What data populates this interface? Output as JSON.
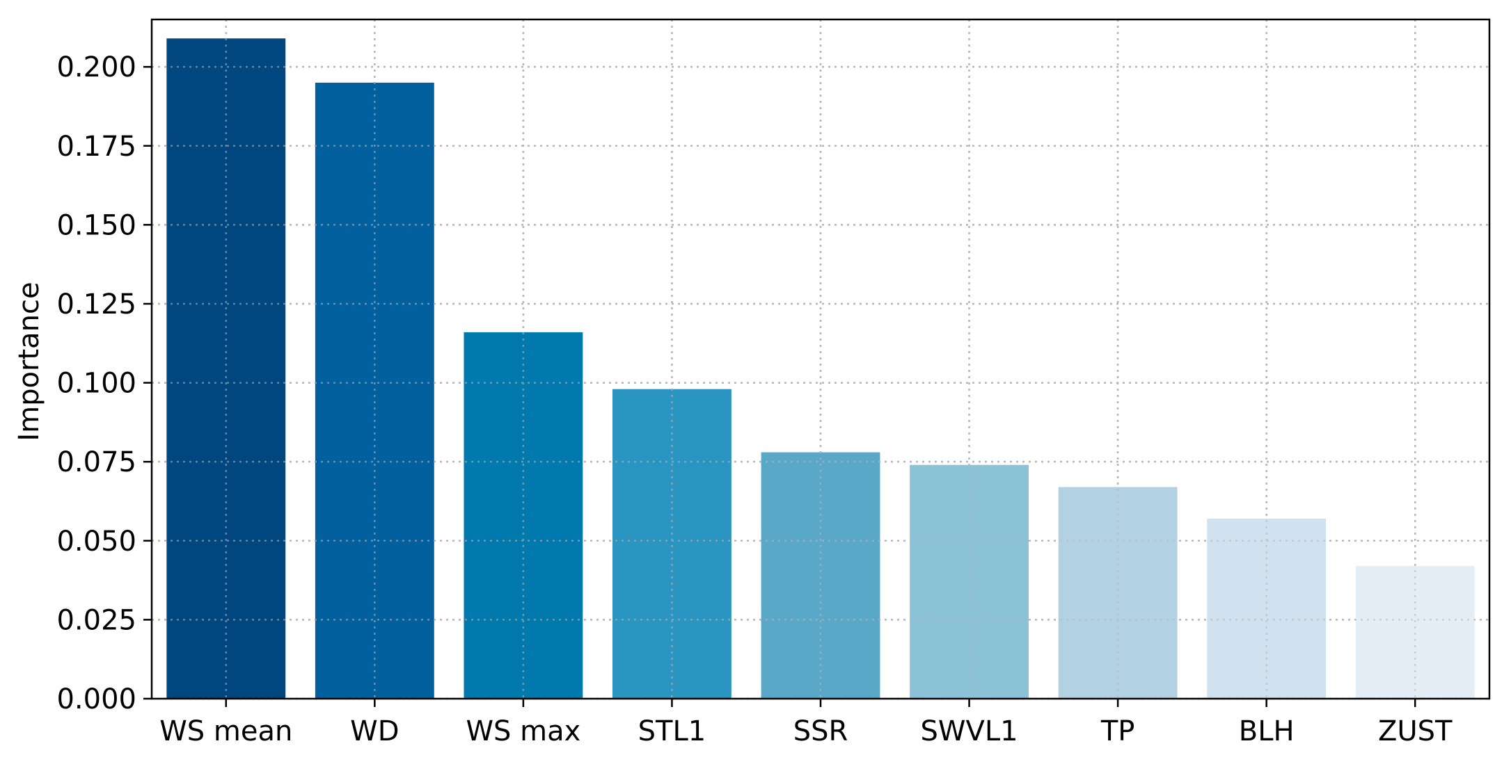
{
  "chart_data": {
    "type": "bar",
    "title": "",
    "xlabel": "",
    "ylabel": "Importance",
    "categories": [
      "WS mean",
      "WD",
      "WS max",
      "STL1",
      "SSR",
      "SWVL1",
      "TP",
      "BLH",
      "ZUST"
    ],
    "values": [
      0.209,
      0.195,
      0.116,
      0.098,
      0.078,
      0.074,
      0.067,
      0.057,
      0.042
    ],
    "colors": [
      "#00477f",
      "#02609e",
      "#0179ad",
      "#2995c0",
      "#5aa8c8",
      "#8cc2d8",
      "#b2d1e3",
      "#d0e2ef",
      "#e3eef6"
    ],
    "ylim": [
      0,
      0.215
    ],
    "yticks": [
      "0.000",
      "0.025",
      "0.050",
      "0.075",
      "0.100",
      "0.125",
      "0.150",
      "0.175",
      "0.200"
    ],
    "grid": true,
    "legend": "none"
  }
}
